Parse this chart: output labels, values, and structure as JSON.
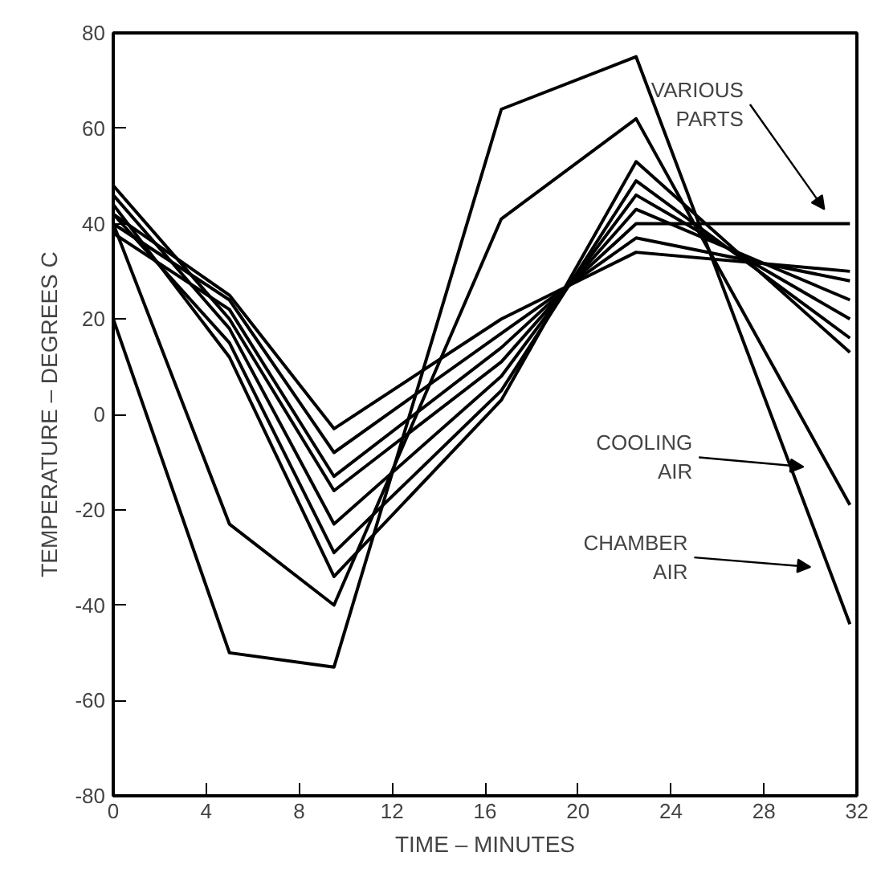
{
  "chart_data": {
    "type": "line",
    "xlabel": "TIME – MINUTES",
    "ylabel": "TEMPERATURE – DEGREES C",
    "xlim": [
      0,
      32
    ],
    "ylim": [
      -80,
      80
    ],
    "xticks": [
      0,
      4,
      8,
      12,
      16,
      20,
      24,
      28,
      32
    ],
    "yticks": [
      80,
      60,
      40,
      20,
      0,
      -20,
      -40,
      -60,
      -80
    ],
    "grid": false,
    "marker": "none",
    "line_style": "solid",
    "x": [
      0,
      5,
      9.5,
      16.7,
      22.5,
      31.7
    ],
    "series": [
      {
        "color": "#000000",
        "values": [
          20,
          -50,
          -53,
          64,
          75,
          -44
        ]
      },
      {
        "color": "#000000",
        "values": [
          40,
          -23,
          -40,
          41,
          62,
          -19
        ]
      },
      {
        "color": "#000000",
        "values": [
          44,
          12,
          -34,
          3,
          53,
          13
        ]
      },
      {
        "color": "#000000",
        "values": [
          42,
          15,
          -29,
          5,
          49,
          16
        ]
      },
      {
        "color": "#000000",
        "values": [
          46,
          18,
          -23,
          8,
          46,
          20
        ]
      },
      {
        "color": "#000000",
        "values": [
          48,
          20,
          -16,
          11,
          43,
          24
        ]
      },
      {
        "color": "#000000",
        "values": [
          38,
          22,
          -13,
          14,
          40,
          40
        ]
      },
      {
        "color": "#000000",
        "values": [
          40,
          24,
          -8,
          17,
          37,
          28
        ]
      },
      {
        "color": "#000000",
        "values": [
          42,
          25,
          -3,
          20,
          34,
          30
        ]
      }
    ],
    "annotations": [
      "VARIOUS\nPARTS",
      "COOLING\nAIR",
      "CHAMBER\nAIR"
    ]
  }
}
